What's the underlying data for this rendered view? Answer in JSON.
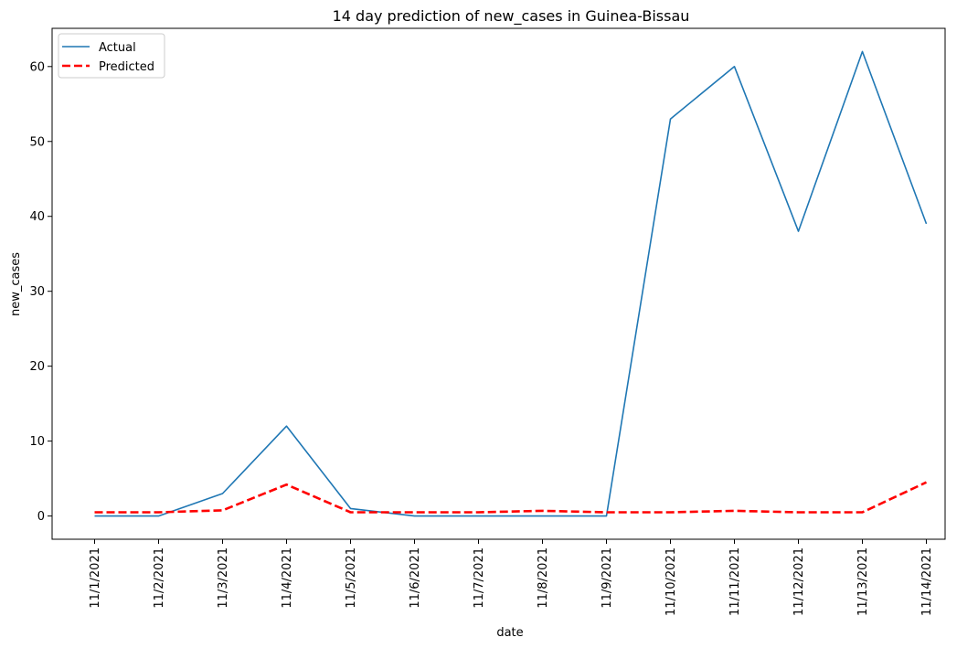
{
  "chart_data": {
    "type": "line",
    "title": "14 day prediction of new_cases in Guinea-Bissau",
    "xlabel": "date",
    "ylabel": "new_cases",
    "categories": [
      "11/1/2021",
      "11/2/2021",
      "11/3/2021",
      "11/4/2021",
      "11/5/2021",
      "11/6/2021",
      "11/7/2021",
      "11/8/2021",
      "11/9/2021",
      "11/10/2021",
      "11/11/2021",
      "11/12/2021",
      "11/13/2021",
      "11/14/2021"
    ],
    "ylim": [
      -3.1,
      65.1
    ],
    "yticks": [
      0,
      10,
      20,
      30,
      40,
      50,
      60
    ],
    "grid": false,
    "legend": "upper-left",
    "series": [
      {
        "name": "Actual",
        "color": "#1f77b4",
        "style": "solid",
        "values": [
          0,
          0,
          3,
          12,
          1,
          0,
          0,
          0,
          0,
          53,
          60,
          38,
          62,
          39
        ]
      },
      {
        "name": "Predicted",
        "color": "#ff0000",
        "style": "dashed",
        "values": [
          0.5,
          0.5,
          0.75,
          4.2,
          0.5,
          0.5,
          0.5,
          0.7,
          0.5,
          0.5,
          0.7,
          0.5,
          0.5,
          4.5
        ]
      }
    ]
  }
}
